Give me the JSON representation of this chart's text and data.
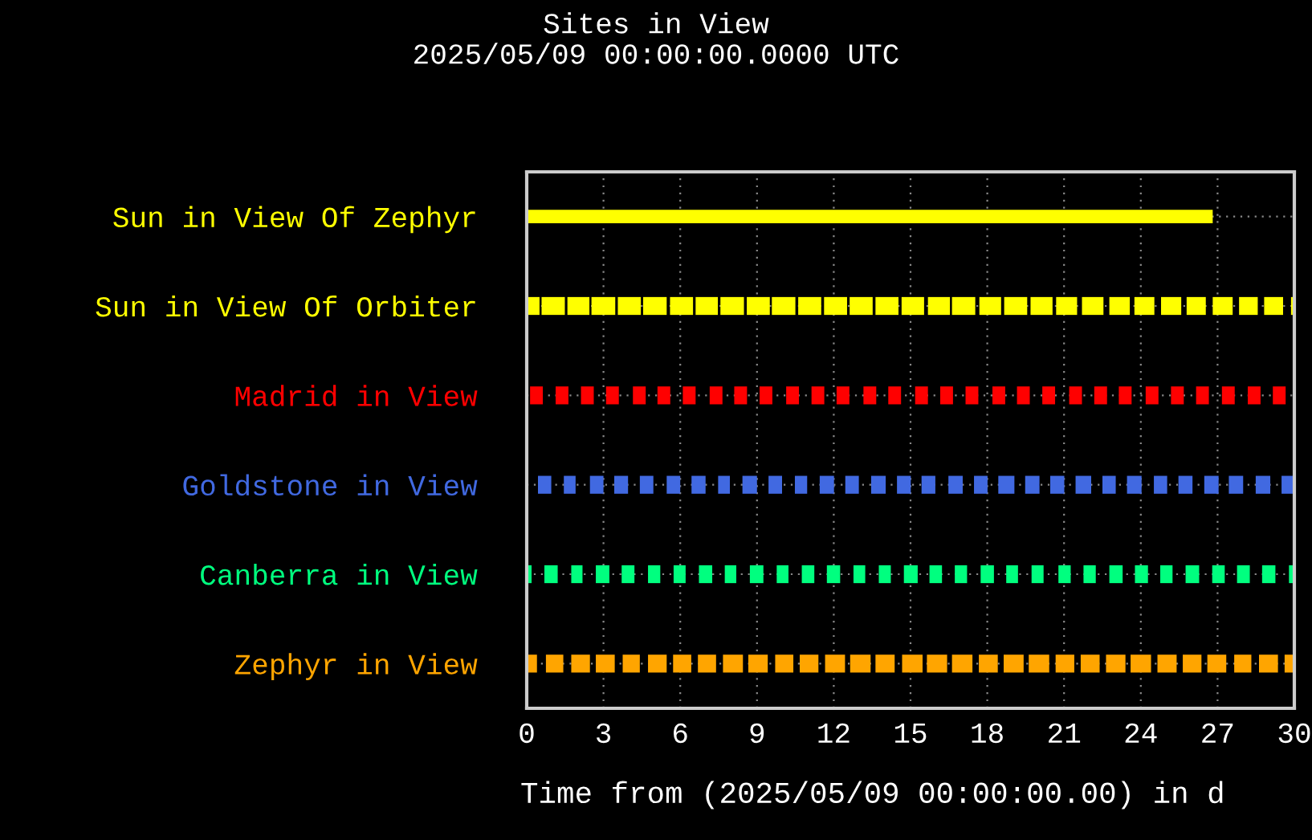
{
  "chart_data": {
    "type": "bar",
    "orientation": "horizontal",
    "title": "Sites in View",
    "subtitle": "2025/05/09 00:00:00.0000 UTC",
    "xlabel": "Time from (2025/05/09 00:00:00.00) in d",
    "categories": [
      "Sun in View Of Zephyr",
      "Sun in View Of Orbiter",
      "Madrid in View",
      "Goldstone in View",
      "Canberra in View",
      "Zephyr in View"
    ],
    "xlim": [
      0,
      30
    ],
    "xticks": [
      0,
      3,
      6,
      9,
      12,
      15,
      18,
      21,
      24,
      27,
      30
    ],
    "grid": true,
    "series": [
      {
        "colors": [
          "#ffff00",
          "#ffff00",
          "#ff0000",
          "#4169e1",
          "#00ff7f",
          "#ffa500"
        ],
        "base": [
          0,
          0,
          0.13,
          0.44,
          0,
          0
        ],
        "values": [
          26.81,
          0.5,
          0.5,
          0.52,
          0.19,
          0.4
        ]
      },
      {
        "colors": [
          "#ffff00",
          "#ffff00",
          "#ff0000",
          "#4169e1",
          "#00ff7f",
          "#ffa500"
        ],
        "base": [
          null,
          0.58,
          1.13,
          1.45,
          0.69,
          0.75
        ],
        "values": [
          null,
          0.91,
          0.5,
          0.46,
          0.52,
          0.68
        ]
      },
      {
        "colors": [
          "#ffff00",
          "#ffff00",
          "#ff0000",
          "#4169e1",
          "#00ff7f",
          "#ffa500"
        ],
        "base": [
          null,
          1.59,
          2.12,
          2.47,
          1.74,
          1.74
        ],
        "values": [
          null,
          0.86,
          0.5,
          0.53,
          0.44,
          0.73
        ]
      },
      {
        "colors": [
          "#ffff00",
          "#ffff00",
          "#ff0000",
          "#4169e1",
          "#00ff7f",
          "#ffa500"
        ],
        "base": [
          null,
          2.53,
          3.1,
          3.42,
          2.7,
          2.7
        ],
        "values": [
          null,
          0.93,
          0.5,
          0.54,
          0.53,
          0.74
        ]
      },
      {
        "colors": [
          "#ffff00",
          "#ffff00",
          "#ff0000",
          "#4169e1",
          "#00ff7f",
          "#ffa500"
        ],
        "base": [
          null,
          3.56,
          4.15,
          4.42,
          3.71,
          3.75
        ],
        "values": [
          null,
          0.9,
          0.5,
          0.53,
          0.5,
          0.67
        ]
      },
      {
        "colors": [
          "#ffff00",
          "#ffff00",
          "#ff0000",
          "#4169e1",
          "#00ff7f",
          "#ffa500"
        ],
        "base": [
          null,
          4.55,
          5.11,
          5.47,
          4.74,
          4.74
        ],
        "values": [
          null,
          0.92,
          0.5,
          0.53,
          0.48,
          0.73
        ]
      },
      {
        "colors": [
          "#ffff00",
          "#ffff00",
          "#ff0000",
          "#4169e1",
          "#00ff7f",
          "#ffa500"
        ],
        "base": [
          null,
          5.6,
          6.1,
          6.44,
          5.74,
          5.72
        ],
        "values": [
          null,
          0.9,
          0.5,
          0.55,
          0.47,
          0.71
        ]
      },
      {
        "colors": [
          "#ffff00",
          "#ffff00",
          "#ff0000",
          "#4169e1",
          "#00ff7f",
          "#ffa500"
        ],
        "base": [
          null,
          6.6,
          7.15,
          7.48,
          6.73,
          6.69
        ],
        "values": [
          null,
          0.87,
          0.5,
          0.46,
          0.52,
          0.71
        ]
      },
      {
        "colors": [
          "#ffff00",
          "#ffff00",
          "#ff0000",
          "#4169e1",
          "#00ff7f",
          "#ffa500"
        ],
        "base": [
          null,
          7.57,
          8.11,
          8.43,
          7.74,
          7.67
        ],
        "values": [
          null,
          0.92,
          0.5,
          0.57,
          0.45,
          0.78
        ]
      },
      {
        "colors": [
          "#ffff00",
          "#ffff00",
          "#ff0000",
          "#4169e1",
          "#00ff7f",
          "#ffa500"
        ],
        "base": [
          null,
          8.6,
          9.1,
          9.45,
          8.72,
          8.66
        ],
        "values": [
          null,
          0.9,
          0.5,
          0.53,
          0.53,
          0.76
        ]
      },
      {
        "colors": [
          "#ffff00",
          "#ffff00",
          "#ff0000",
          "#4169e1",
          "#00ff7f",
          "#ffa500"
        ],
        "base": [
          null,
          9.58,
          10.14,
          10.48,
          9.77,
          9.71
        ],
        "values": [
          null,
          0.92,
          0.5,
          0.48,
          0.46,
          0.71
        ]
      },
      {
        "colors": [
          "#ffff00",
          "#ffff00",
          "#ff0000",
          "#4169e1",
          "#00ff7f",
          "#ffa500"
        ],
        "base": [
          null,
          10.61,
          11.13,
          11.45,
          10.75,
          10.67
        ],
        "values": [
          null,
          0.9,
          0.5,
          0.56,
          0.49,
          0.73
        ]
      },
      {
        "colors": [
          "#ffff00",
          "#ffff00",
          "#ff0000",
          "#4169e1",
          "#00ff7f",
          "#ffa500"
        ],
        "base": [
          null,
          11.62,
          12.11,
          12.45,
          11.73,
          11.66
        ],
        "values": [
          null,
          0.9,
          0.5,
          0.53,
          0.52,
          0.78
        ]
      },
      {
        "colors": [
          "#ffff00",
          "#ffff00",
          "#ff0000",
          "#4169e1",
          "#00ff7f",
          "#ffa500"
        ],
        "base": [
          null,
          12.62,
          13.16,
          13.46,
          12.77,
          12.64
        ],
        "values": [
          null,
          0.9,
          0.5,
          0.57,
          0.46,
          0.8
        ]
      },
      {
        "colors": [
          "#ffff00",
          "#ffff00",
          "#ff0000",
          "#4169e1",
          "#00ff7f",
          "#ffa500"
        ],
        "base": [
          null,
          13.63,
          14.13,
          14.47,
          13.76,
          13.63
        ],
        "values": [
          null,
          0.9,
          0.5,
          0.54,
          0.47,
          0.75
        ]
      },
      {
        "colors": [
          "#ffff00",
          "#ffff00",
          "#ff0000",
          "#4169e1",
          "#00ff7f",
          "#ffa500"
        ],
        "base": [
          null,
          14.65,
          15.18,
          15.43,
          14.74,
          14.67
        ],
        "values": [
          null,
          0.88,
          0.5,
          0.54,
          0.54,
          0.8
        ]
      },
      {
        "colors": [
          "#ffff00",
          "#ffff00",
          "#ff0000",
          "#4169e1",
          "#00ff7f",
          "#ffa500"
        ],
        "base": [
          null,
          15.68,
          16.16,
          16.48,
          15.74,
          15.64
        ],
        "values": [
          null,
          0.86,
          0.5,
          0.56,
          0.49,
          0.79
        ]
      },
      {
        "colors": [
          "#ffff00",
          "#ffff00",
          "#ff0000",
          "#4169e1",
          "#00ff7f",
          "#ffa500"
        ],
        "base": [
          null,
          16.62,
          17.15,
          17.48,
          16.73,
          16.62
        ],
        "values": [
          null,
          0.91,
          0.5,
          0.53,
          0.48,
          0.8
        ]
      },
      {
        "colors": [
          "#ffff00",
          "#ffff00",
          "#ff0000",
          "#4169e1",
          "#00ff7f",
          "#ffa500"
        ],
        "base": [
          null,
          17.69,
          18.2,
          18.43,
          17.74,
          17.67
        ],
        "values": [
          null,
          0.85,
          0.5,
          0.63,
          0.52,
          0.74
        ]
      },
      {
        "colors": [
          "#ffff00",
          "#ffff00",
          "#ff0000",
          "#4169e1",
          "#00ff7f",
          "#ffa500"
        ],
        "base": [
          null,
          18.66,
          19.16,
          19.48,
          18.74,
          18.64
        ],
        "values": [
          null,
          0.9,
          0.5,
          0.56,
          0.46,
          0.78
        ]
      },
      {
        "colors": [
          "#ffff00",
          "#ffff00",
          "#ff0000",
          "#4169e1",
          "#00ff7f",
          "#ffa500"
        ],
        "base": [
          null,
          19.69,
          20.15,
          20.46,
          19.73,
          19.62
        ],
        "values": [
          null,
          0.86,
          0.5,
          0.55,
          0.47,
          0.8
        ]
      },
      {
        "colors": [
          "#ffff00",
          "#ffff00",
          "#ff0000",
          "#4169e1",
          "#00ff7f",
          "#ffa500"
        ],
        "base": [
          null,
          20.69,
          21.2,
          21.45,
          20.78,
          20.67
        ],
        "values": [
          null,
          0.82,
          0.5,
          0.61,
          0.48,
          0.73
        ]
      },
      {
        "colors": [
          "#ffff00",
          "#ffff00",
          "#ff0000",
          "#4169e1",
          "#00ff7f",
          "#ffa500"
        ],
        "base": [
          null,
          21.7,
          22.18,
          22.5,
          21.76,
          21.65
        ],
        "values": [
          null,
          0.84,
          0.5,
          0.52,
          0.48,
          0.74
        ]
      },
      {
        "colors": [
          "#ffff00",
          "#ffff00",
          "#ff0000",
          "#4169e1",
          "#00ff7f",
          "#ffa500"
        ],
        "base": [
          null,
          22.77,
          23.14,
          23.46,
          22.77,
          22.64
        ],
        "values": [
          null,
          0.8,
          0.5,
          0.57,
          0.52,
          0.76
        ]
      },
      {
        "colors": [
          "#ffff00",
          "#ffff00",
          "#ff0000",
          "#4169e1",
          "#00ff7f",
          "#ffa500"
        ],
        "base": [
          null,
          23.75,
          24.19,
          24.51,
          23.77,
          23.6
        ],
        "values": [
          null,
          0.78,
          0.5,
          0.52,
          0.51,
          0.8
        ]
      },
      {
        "colors": [
          "#ffff00",
          "#ffff00",
          "#ff0000",
          "#4169e1",
          "#00ff7f",
          "#ffa500"
        ],
        "base": [
          null,
          24.79,
          25.18,
          25.47,
          24.76,
          24.65
        ],
        "values": [
          null,
          0.79,
          0.5,
          0.55,
          0.48,
          0.75
        ]
      },
      {
        "colors": [
          "#ffff00",
          "#ffff00",
          "#ff0000",
          "#4169e1",
          "#00ff7f",
          "#ffa500"
        ],
        "base": [
          null,
          25.79,
          26.16,
          26.48,
          25.75,
          25.64
        ],
        "values": [
          null,
          0.75,
          0.5,
          0.56,
          0.53,
          0.73
        ]
      },
      {
        "colors": [
          "#ffff00",
          "#ffff00",
          "#ff0000",
          "#4169e1",
          "#00ff7f",
          "#ffa500"
        ],
        "base": [
          null,
          26.81,
          27.17,
          27.44,
          26.79,
          26.6
        ],
        "values": [
          null,
          0.78,
          0.5,
          0.56,
          0.49,
          0.74
        ]
      },
      {
        "colors": [
          "#ffff00",
          "#ffff00",
          "#ff0000",
          "#4169e1",
          "#00ff7f",
          "#ffa500"
        ],
        "base": [
          null,
          27.84,
          28.18,
          28.49,
          27.76,
          27.65
        ],
        "values": [
          null,
          0.73,
          0.5,
          0.57,
          0.5,
          0.67
        ]
      },
      {
        "colors": [
          "#ffff00",
          "#ffff00",
          "#ff0000",
          "#4169e1",
          "#00ff7f",
          "#ffa500"
        ],
        "base": [
          null,
          28.82,
          29.16,
          29.5,
          28.74,
          28.62
        ],
        "values": [
          null,
          0.74,
          0.5,
          0.5,
          0.52,
          0.74
        ]
      },
      {
        "colors": [
          "#ffff00",
          "#ffff00",
          "#ff0000",
          "#4169e1",
          "#00ff7f",
          "#ffa500"
        ],
        "base": [
          null,
          29.87,
          null,
          null,
          29.79,
          29.62
        ],
        "values": [
          null,
          0.13,
          null,
          null,
          0.21,
          0.38
        ]
      }
    ]
  }
}
